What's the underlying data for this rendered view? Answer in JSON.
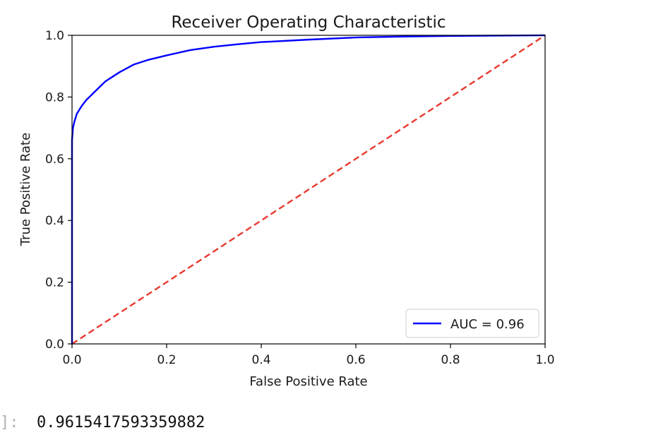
{
  "chart_data": {
    "type": "line",
    "title": "Receiver Operating Characteristic",
    "xlabel": "False Positive Rate",
    "ylabel": "True Positive Rate",
    "xlim": [
      0,
      1
    ],
    "ylim": [
      0,
      1
    ],
    "xticks": [
      "0.0",
      "0.2",
      "0.4",
      "0.6",
      "0.8",
      "1.0"
    ],
    "yticks": [
      "0.0",
      "0.2",
      "0.4",
      "0.6",
      "0.8",
      "1.0"
    ],
    "grid": false,
    "legend_position": "lower-right",
    "series": [
      {
        "name": "AUC = 0.96",
        "color": "#0000ff",
        "style": "solid",
        "x": [
          0,
          0,
          0.002,
          0.005,
          0.01,
          0.02,
          0.03,
          0.05,
          0.07,
          0.1,
          0.13,
          0.16,
          0.2,
          0.25,
          0.3,
          0.35,
          0.4,
          0.5,
          0.6,
          0.7,
          0.8,
          0.9,
          1.0
        ],
        "y": [
          0,
          0.66,
          0.7,
          0.72,
          0.745,
          0.77,
          0.79,
          0.82,
          0.85,
          0.88,
          0.905,
          0.92,
          0.935,
          0.952,
          0.963,
          0.971,
          0.978,
          0.986,
          0.993,
          0.996,
          0.998,
          0.999,
          1.0
        ]
      },
      {
        "name": "",
        "color": "#e8392f",
        "style": "dashed",
        "x": [
          0,
          1
        ],
        "y": [
          0,
          1
        ]
      }
    ]
  },
  "output": {
    "prompt": "]:",
    "value": "0.9615417593359882"
  }
}
